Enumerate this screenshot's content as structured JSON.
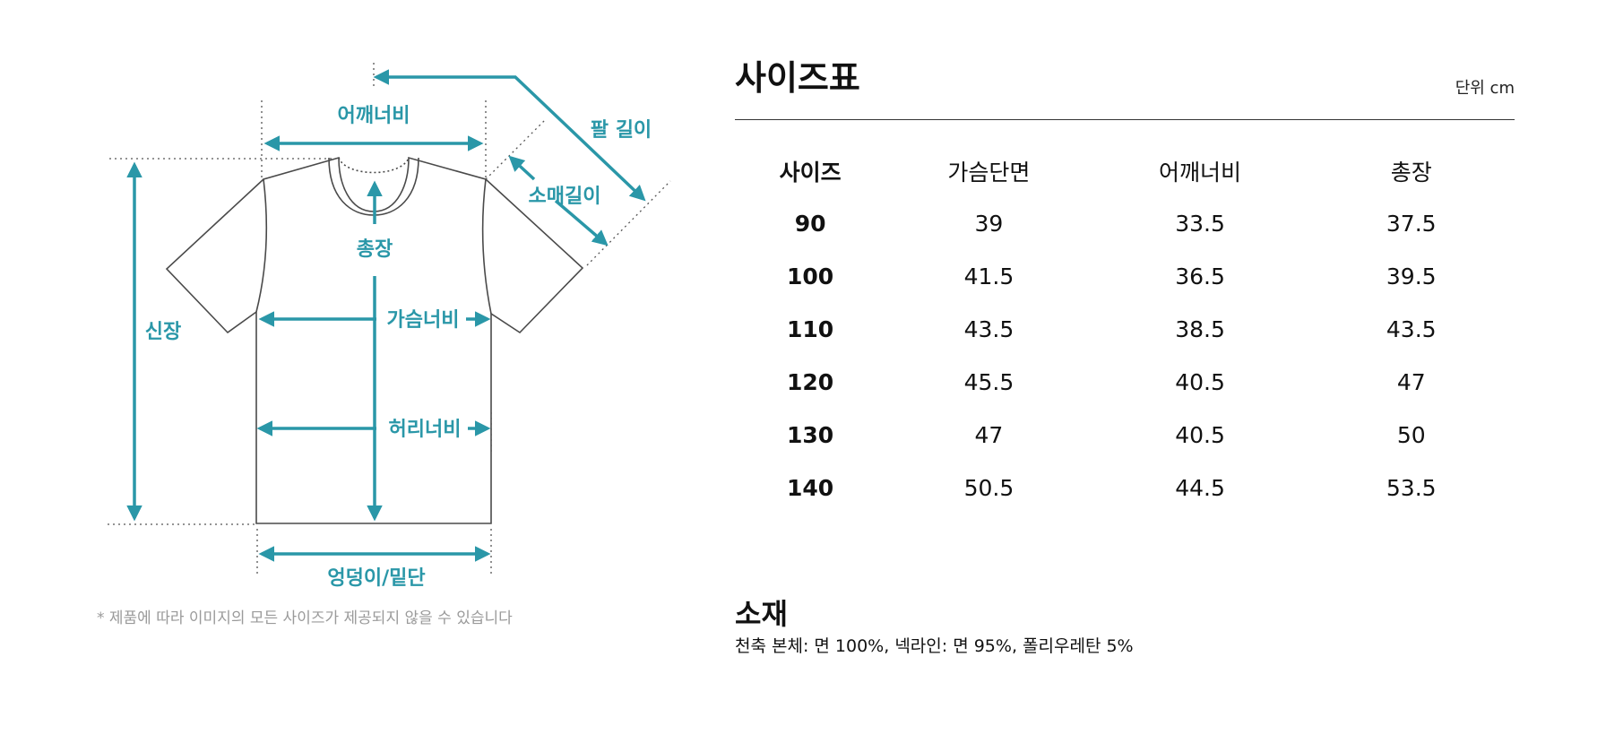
{
  "colors": {
    "accent": "#2a97a8",
    "outline": "#4a4a4a",
    "note": "#9a9a9a"
  },
  "diagram": {
    "labels": {
      "shoulder_width": "어깨너비",
      "arm_length": "팔 길이",
      "sleeve_length": "소매길이",
      "total_length": "총장",
      "height": "신장",
      "chest_width": "가슴너비",
      "waist_width": "허리너비",
      "hem_width": "엉덩이/밑단"
    },
    "note": "* 제품에 따라 이미지의 모든 사이즈가 제공되지 않을 수 있습니다"
  },
  "size_chart": {
    "title": "사이즈표",
    "unit": "단위 cm",
    "columns": [
      "사이즈",
      "가슴단면",
      "어깨너비",
      "총장"
    ],
    "rows": [
      [
        "90",
        "39",
        "33.5",
        "37.5"
      ],
      [
        "100",
        "41.5",
        "36.5",
        "39.5"
      ],
      [
        "110",
        "43.5",
        "38.5",
        "43.5"
      ],
      [
        "120",
        "45.5",
        "40.5",
        "47"
      ],
      [
        "130",
        "47",
        "40.5",
        "50"
      ],
      [
        "140",
        "50.5",
        "44.5",
        "53.5"
      ]
    ]
  },
  "material": {
    "title": "소재",
    "text": "천축 본체: 면 100%, 넥라인: 면 95%, 폴리우레탄 5%"
  }
}
